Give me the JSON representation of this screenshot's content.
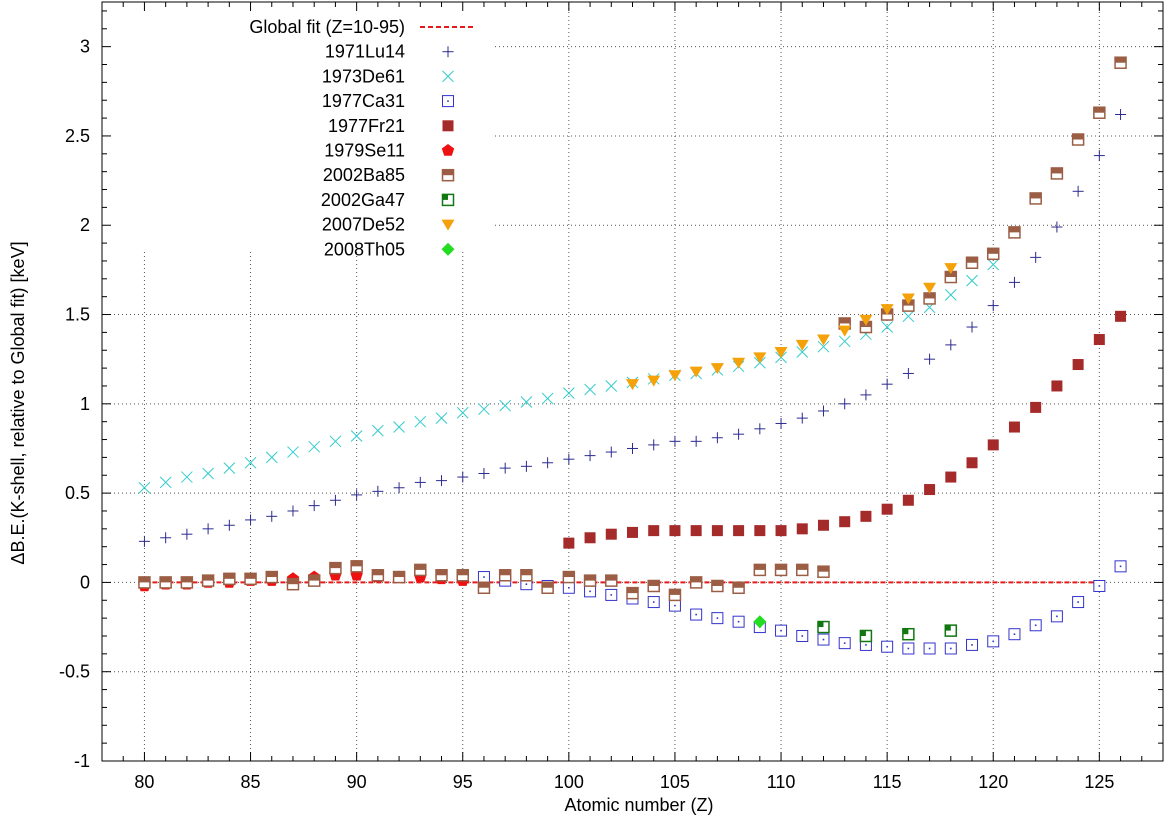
{
  "chart_data": {
    "type": "scatter",
    "title": "",
    "xlabel": "Atomic number (Z)",
    "ylabel": "ΔB.E.(K-shell, relative to Global fit) [keV]",
    "xlim": [
      78,
      128
    ],
    "ylim": [
      -1,
      3.25
    ],
    "xticks": [
      80,
      85,
      90,
      95,
      100,
      105,
      110,
      115,
      120,
      125
    ],
    "yticks": [
      -1,
      -0.5,
      0,
      0.5,
      1,
      1.5,
      2,
      2.5,
      3
    ],
    "ytick_labels": [
      "-1",
      "-0.5",
      "0",
      "0.5",
      "1",
      "1.5",
      "2",
      "2.5",
      "3"
    ],
    "grid": true,
    "legend_position": "top-left",
    "series": [
      {
        "name": "Global fit (Z=10-95)",
        "marker": "dashed-line",
        "color": "#e41a1c",
        "x": [
          80,
          125
        ],
        "y": [
          0,
          0
        ]
      },
      {
        "name": "1971Lu14",
        "marker": "plus",
        "color": "#2b2b8f",
        "x": [
          80,
          81,
          82,
          83,
          84,
          85,
          86,
          87,
          88,
          89,
          90,
          91,
          92,
          93,
          94,
          95,
          96,
          97,
          98,
          99,
          100,
          101,
          102,
          103,
          104,
          105,
          106,
          107,
          108,
          109,
          110,
          111,
          112,
          113,
          114,
          115,
          116,
          117,
          118,
          119,
          120,
          121,
          122,
          123,
          124,
          125,
          126
        ],
        "y": [
          0.23,
          0.25,
          0.27,
          0.3,
          0.32,
          0.35,
          0.37,
          0.4,
          0.43,
          0.46,
          0.49,
          0.51,
          0.53,
          0.56,
          0.57,
          0.59,
          0.61,
          0.64,
          0.65,
          0.67,
          0.69,
          0.71,
          0.73,
          0.75,
          0.77,
          0.79,
          0.79,
          0.81,
          0.83,
          0.86,
          0.89,
          0.92,
          0.96,
          1.0,
          1.05,
          1.11,
          1.17,
          1.25,
          1.33,
          1.43,
          1.55,
          1.68,
          1.82,
          1.99,
          2.19,
          2.39,
          2.62
        ]
      },
      {
        "name": "1973De61",
        "marker": "cross",
        "color": "#33cccc",
        "x": [
          80,
          81,
          82,
          83,
          84,
          85,
          86,
          87,
          88,
          89,
          90,
          91,
          92,
          93,
          94,
          95,
          96,
          97,
          98,
          99,
          100,
          101,
          102,
          103,
          104,
          105,
          106,
          107,
          108,
          109,
          110,
          111,
          112,
          113,
          114,
          115,
          116,
          117,
          118,
          119,
          120
        ],
        "y": [
          0.53,
          0.56,
          0.59,
          0.61,
          0.64,
          0.67,
          0.7,
          0.73,
          0.76,
          0.79,
          0.82,
          0.85,
          0.87,
          0.9,
          0.92,
          0.95,
          0.97,
          0.99,
          1.01,
          1.03,
          1.06,
          1.08,
          1.1,
          1.12,
          1.14,
          1.16,
          1.17,
          1.19,
          1.21,
          1.23,
          1.26,
          1.29,
          1.32,
          1.35,
          1.39,
          1.43,
          1.49,
          1.54,
          1.61,
          1.69,
          1.78
        ]
      },
      {
        "name": "1977Ca31",
        "marker": "open-square",
        "color": "#3333cc",
        "x": [
          96,
          97,
          98,
          99,
          100,
          101,
          102,
          103,
          104,
          105,
          106,
          107,
          108,
          109,
          110,
          111,
          112,
          113,
          114,
          115,
          116,
          117,
          118,
          119,
          120,
          121,
          122,
          123,
          124,
          125,
          126
        ],
        "y": [
          0.03,
          0.01,
          -0.01,
          -0.02,
          -0.03,
          -0.05,
          -0.07,
          -0.09,
          -0.11,
          -0.13,
          -0.18,
          -0.2,
          -0.22,
          -0.25,
          -0.27,
          -0.3,
          -0.32,
          -0.34,
          -0.35,
          -0.36,
          -0.37,
          -0.37,
          -0.37,
          -0.35,
          -0.33,
          -0.29,
          -0.24,
          -0.19,
          -0.11,
          -0.02,
          0.09
        ]
      },
      {
        "name": "1977Fr21",
        "marker": "filled-square",
        "color": "#a52a2a",
        "x": [
          100,
          101,
          102,
          103,
          104,
          105,
          106,
          107,
          108,
          109,
          110,
          111,
          112,
          113,
          114,
          115,
          116,
          117,
          118,
          119,
          120,
          121,
          122,
          123,
          124,
          125,
          126
        ],
        "y": [
          0.22,
          0.25,
          0.27,
          0.28,
          0.29,
          0.29,
          0.29,
          0.29,
          0.29,
          0.29,
          0.29,
          0.3,
          0.32,
          0.34,
          0.37,
          0.41,
          0.46,
          0.52,
          0.59,
          0.67,
          0.77,
          0.87,
          0.98,
          1.1,
          1.22,
          1.36,
          1.49
        ]
      },
      {
        "name": "1979Se11",
        "marker": "filled-pentagon",
        "color": "#ee1111",
        "x": [
          80,
          81,
          82,
          83,
          84,
          85,
          86,
          87,
          88,
          89,
          90,
          91,
          92,
          93,
          94,
          95
        ],
        "y": [
          -0.02,
          -0.01,
          -0.01,
          0.0,
          0.0,
          0.01,
          0.01,
          0.02,
          0.03,
          0.04,
          0.04,
          0.03,
          0.03,
          0.03,
          0.02,
          0.01
        ]
      },
      {
        "name": "2002Ba85",
        "marker": "half-square",
        "color": "#9b5e45",
        "x": [
          80,
          81,
          82,
          83,
          84,
          85,
          86,
          87,
          88,
          89,
          90,
          91,
          92,
          93,
          94,
          95,
          96,
          97,
          98,
          99,
          100,
          101,
          102,
          103,
          104,
          105,
          106,
          107,
          108,
          109,
          110,
          111,
          112,
          113,
          114,
          115,
          116,
          117,
          118,
          119,
          120,
          121,
          122,
          123,
          124,
          125,
          126
        ],
        "y": [
          0.0,
          0.0,
          0.0,
          0.01,
          0.02,
          0.02,
          0.03,
          -0.01,
          0.01,
          0.08,
          0.09,
          0.04,
          0.03,
          0.07,
          0.04,
          0.04,
          -0.03,
          0.04,
          0.04,
          -0.03,
          0.03,
          0.01,
          0.01,
          -0.06,
          -0.02,
          -0.07,
          0.0,
          -0.02,
          -0.03,
          0.07,
          0.07,
          0.07,
          0.06,
          1.45,
          1.43,
          1.5,
          1.55,
          1.59,
          1.71,
          1.79,
          1.84,
          1.96,
          2.15,
          2.29,
          2.48,
          2.63,
          2.91
        ]
      },
      {
        "name": "2002Ga47",
        "marker": "quarter-square",
        "color": "#117711",
        "x": [
          112,
          114,
          116,
          118
        ],
        "y": [
          -0.25,
          -0.3,
          -0.29,
          -0.27
        ]
      },
      {
        "name": "2007De52",
        "marker": "filled-triangle-down",
        "color": "#f5a10a",
        "x": [
          103,
          104,
          105,
          106,
          107,
          108,
          109,
          110,
          111,
          112,
          113,
          114,
          115,
          116,
          117,
          118
        ],
        "y": [
          1.11,
          1.13,
          1.16,
          1.18,
          1.2,
          1.23,
          1.26,
          1.29,
          1.33,
          1.36,
          1.41,
          1.47,
          1.53,
          1.59,
          1.65,
          1.76
        ]
      },
      {
        "name": "2008Th05",
        "marker": "filled-diamond",
        "color": "#22dd22",
        "x": [
          109
        ],
        "y": [
          -0.22
        ]
      }
    ]
  }
}
